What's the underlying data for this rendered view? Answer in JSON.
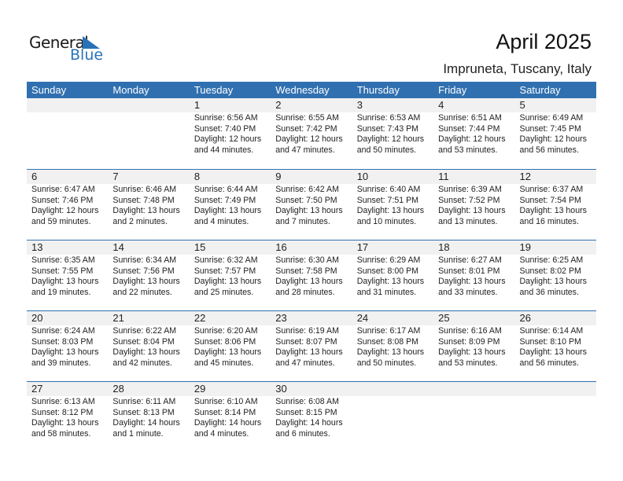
{
  "logo": {
    "text_general": "General",
    "text_blue": "Blue",
    "accent": "#2a72b8"
  },
  "title": "April 2025",
  "location": "Impruneta, Tuscany, Italy",
  "header_color": "#3070b0",
  "weekdays": [
    "Sunday",
    "Monday",
    "Tuesday",
    "Wednesday",
    "Thursday",
    "Friday",
    "Saturday"
  ],
  "weeks": [
    [
      null,
      null,
      {
        "day": "1",
        "sunrise": "Sunrise: 6:56 AM",
        "sunset": "Sunset: 7:40 PM",
        "daylight1": "Daylight: 12 hours",
        "daylight2": "and 44 minutes."
      },
      {
        "day": "2",
        "sunrise": "Sunrise: 6:55 AM",
        "sunset": "Sunset: 7:42 PM",
        "daylight1": "Daylight: 12 hours",
        "daylight2": "and 47 minutes."
      },
      {
        "day": "3",
        "sunrise": "Sunrise: 6:53 AM",
        "sunset": "Sunset: 7:43 PM",
        "daylight1": "Daylight: 12 hours",
        "daylight2": "and 50 minutes."
      },
      {
        "day": "4",
        "sunrise": "Sunrise: 6:51 AM",
        "sunset": "Sunset: 7:44 PM",
        "daylight1": "Daylight: 12 hours",
        "daylight2": "and 53 minutes."
      },
      {
        "day": "5",
        "sunrise": "Sunrise: 6:49 AM",
        "sunset": "Sunset: 7:45 PM",
        "daylight1": "Daylight: 12 hours",
        "daylight2": "and 56 minutes."
      }
    ],
    [
      {
        "day": "6",
        "sunrise": "Sunrise: 6:47 AM",
        "sunset": "Sunset: 7:46 PM",
        "daylight1": "Daylight: 12 hours",
        "daylight2": "and 59 minutes."
      },
      {
        "day": "7",
        "sunrise": "Sunrise: 6:46 AM",
        "sunset": "Sunset: 7:48 PM",
        "daylight1": "Daylight: 13 hours",
        "daylight2": "and 2 minutes."
      },
      {
        "day": "8",
        "sunrise": "Sunrise: 6:44 AM",
        "sunset": "Sunset: 7:49 PM",
        "daylight1": "Daylight: 13 hours",
        "daylight2": "and 4 minutes."
      },
      {
        "day": "9",
        "sunrise": "Sunrise: 6:42 AM",
        "sunset": "Sunset: 7:50 PM",
        "daylight1": "Daylight: 13 hours",
        "daylight2": "and 7 minutes."
      },
      {
        "day": "10",
        "sunrise": "Sunrise: 6:40 AM",
        "sunset": "Sunset: 7:51 PM",
        "daylight1": "Daylight: 13 hours",
        "daylight2": "and 10 minutes."
      },
      {
        "day": "11",
        "sunrise": "Sunrise: 6:39 AM",
        "sunset": "Sunset: 7:52 PM",
        "daylight1": "Daylight: 13 hours",
        "daylight2": "and 13 minutes."
      },
      {
        "day": "12",
        "sunrise": "Sunrise: 6:37 AM",
        "sunset": "Sunset: 7:54 PM",
        "daylight1": "Daylight: 13 hours",
        "daylight2": "and 16 minutes."
      }
    ],
    [
      {
        "day": "13",
        "sunrise": "Sunrise: 6:35 AM",
        "sunset": "Sunset: 7:55 PM",
        "daylight1": "Daylight: 13 hours",
        "daylight2": "and 19 minutes."
      },
      {
        "day": "14",
        "sunrise": "Sunrise: 6:34 AM",
        "sunset": "Sunset: 7:56 PM",
        "daylight1": "Daylight: 13 hours",
        "daylight2": "and 22 minutes."
      },
      {
        "day": "15",
        "sunrise": "Sunrise: 6:32 AM",
        "sunset": "Sunset: 7:57 PM",
        "daylight1": "Daylight: 13 hours",
        "daylight2": "and 25 minutes."
      },
      {
        "day": "16",
        "sunrise": "Sunrise: 6:30 AM",
        "sunset": "Sunset: 7:58 PM",
        "daylight1": "Daylight: 13 hours",
        "daylight2": "and 28 minutes."
      },
      {
        "day": "17",
        "sunrise": "Sunrise: 6:29 AM",
        "sunset": "Sunset: 8:00 PM",
        "daylight1": "Daylight: 13 hours",
        "daylight2": "and 31 minutes."
      },
      {
        "day": "18",
        "sunrise": "Sunrise: 6:27 AM",
        "sunset": "Sunset: 8:01 PM",
        "daylight1": "Daylight: 13 hours",
        "daylight2": "and 33 minutes."
      },
      {
        "day": "19",
        "sunrise": "Sunrise: 6:25 AM",
        "sunset": "Sunset: 8:02 PM",
        "daylight1": "Daylight: 13 hours",
        "daylight2": "and 36 minutes."
      }
    ],
    [
      {
        "day": "20",
        "sunrise": "Sunrise: 6:24 AM",
        "sunset": "Sunset: 8:03 PM",
        "daylight1": "Daylight: 13 hours",
        "daylight2": "and 39 minutes."
      },
      {
        "day": "21",
        "sunrise": "Sunrise: 6:22 AM",
        "sunset": "Sunset: 8:04 PM",
        "daylight1": "Daylight: 13 hours",
        "daylight2": "and 42 minutes."
      },
      {
        "day": "22",
        "sunrise": "Sunrise: 6:20 AM",
        "sunset": "Sunset: 8:06 PM",
        "daylight1": "Daylight: 13 hours",
        "daylight2": "and 45 minutes."
      },
      {
        "day": "23",
        "sunrise": "Sunrise: 6:19 AM",
        "sunset": "Sunset: 8:07 PM",
        "daylight1": "Daylight: 13 hours",
        "daylight2": "and 47 minutes."
      },
      {
        "day": "24",
        "sunrise": "Sunrise: 6:17 AM",
        "sunset": "Sunset: 8:08 PM",
        "daylight1": "Daylight: 13 hours",
        "daylight2": "and 50 minutes."
      },
      {
        "day": "25",
        "sunrise": "Sunrise: 6:16 AM",
        "sunset": "Sunset: 8:09 PM",
        "daylight1": "Daylight: 13 hours",
        "daylight2": "and 53 minutes."
      },
      {
        "day": "26",
        "sunrise": "Sunrise: 6:14 AM",
        "sunset": "Sunset: 8:10 PM",
        "daylight1": "Daylight: 13 hours",
        "daylight2": "and 56 minutes."
      }
    ],
    [
      {
        "day": "27",
        "sunrise": "Sunrise: 6:13 AM",
        "sunset": "Sunset: 8:12 PM",
        "daylight1": "Daylight: 13 hours",
        "daylight2": "and 58 minutes."
      },
      {
        "day": "28",
        "sunrise": "Sunrise: 6:11 AM",
        "sunset": "Sunset: 8:13 PM",
        "daylight1": "Daylight: 14 hours",
        "daylight2": "and 1 minute."
      },
      {
        "day": "29",
        "sunrise": "Sunrise: 6:10 AM",
        "sunset": "Sunset: 8:14 PM",
        "daylight1": "Daylight: 14 hours",
        "daylight2": "and 4 minutes."
      },
      {
        "day": "30",
        "sunrise": "Sunrise: 6:08 AM",
        "sunset": "Sunset: 8:15 PM",
        "daylight1": "Daylight: 14 hours",
        "daylight2": "and 6 minutes."
      },
      null,
      null,
      null
    ]
  ]
}
